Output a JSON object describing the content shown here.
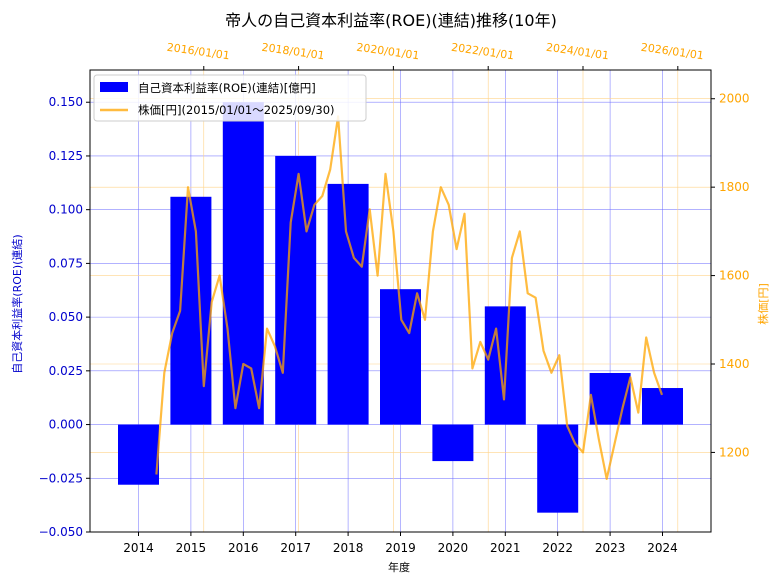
{
  "colors": {
    "bar": "#0000ff",
    "price": "#ffa500",
    "left_axis_text": "#0000cc",
    "right_axis_text": "#ffa500",
    "grid_left": "#6666ff",
    "grid_right": "#ffd38a"
  },
  "chart_data": {
    "type": "bar",
    "title": "帝人の自己資本利益率(ROE)(連結)推移(10年)",
    "xlabel": "年度",
    "ylabel": "自己資本利益率(ROE)(連結)",
    "y2label": "株価[円]",
    "legend_position": "top-left",
    "grid": true,
    "categories": [
      "2014",
      "2015",
      "2016",
      "2017",
      "2018",
      "2019",
      "2020",
      "2021",
      "2022",
      "2023",
      "2024"
    ],
    "ylim": [
      -0.05,
      0.165
    ],
    "yticks": [
      "−0.050",
      "−0.025",
      "0.000",
      "0.025",
      "0.050",
      "0.075",
      "0.100",
      "0.125",
      "0.150"
    ],
    "y2lim": [
      1020,
      2065
    ],
    "y2ticks": [
      "1200",
      "1400",
      "1600",
      "1800",
      "2000"
    ],
    "top_axis_ticks": [
      "2016/01/01",
      "2018/01/01",
      "2020/01/01",
      "2022/01/01",
      "2024/01/01",
      "2026/01/01"
    ],
    "series": [
      {
        "name": "自己資本利益率(ROE)(連結)[億円]",
        "kind": "bar",
        "values": [
          -0.028,
          0.106,
          0.15,
          0.125,
          0.112,
          0.063,
          -0.017,
          0.055,
          -0.041,
          0.024,
          0.017
        ]
      },
      {
        "name": "株価[円](2015/01/01～2025/09/30)",
        "kind": "line",
        "axis": "right",
        "x": [
          "2015/01",
          "2015/03",
          "2015/05",
          "2015/07",
          "2015/09",
          "2015/11",
          "2016/01",
          "2016/03",
          "2016/05",
          "2016/07",
          "2016/09",
          "2016/11",
          "2017/01",
          "2017/03",
          "2017/05",
          "2017/07",
          "2017/09",
          "2017/11",
          "2018/01",
          "2018/03",
          "2018/05",
          "2018/07",
          "2018/09",
          "2018/11",
          "2019/01",
          "2019/03",
          "2019/05",
          "2019/07",
          "2019/09",
          "2019/11",
          "2020/01",
          "2020/03",
          "2020/05",
          "2020/07",
          "2020/09",
          "2020/11",
          "2021/01",
          "2021/03",
          "2021/05",
          "2021/07",
          "2021/09",
          "2021/11",
          "2022/01",
          "2022/03",
          "2022/05",
          "2022/07",
          "2022/09",
          "2022/11",
          "2023/01",
          "2023/03",
          "2023/05",
          "2023/07",
          "2023/09",
          "2023/11",
          "2024/01",
          "2024/03",
          "2024/05",
          "2024/07",
          "2024/09",
          "2024/11",
          "2025/01",
          "2025/03",
          "2025/05",
          "2025/07",
          "2025/09"
        ],
        "values": [
          1150,
          1380,
          1470,
          1520,
          1800,
          1700,
          1350,
          1540,
          1600,
          1480,
          1300,
          1400,
          1390,
          1300,
          1480,
          1440,
          1380,
          1720,
          1830,
          1700,
          1760,
          1780,
          1840,
          1960,
          1700,
          1640,
          1620,
          1750,
          1600,
          1830,
          1700,
          1500,
          1470,
          1560,
          1500,
          1700,
          1800,
          1760,
          1660,
          1740,
          1390,
          1450,
          1410,
          1480,
          1320,
          1640,
          1700,
          1560,
          1550,
          1430,
          1380,
          1420,
          1260,
          1220,
          1200,
          1330,
          1230,
          1140,
          1220,
          1300,
          1370,
          1290,
          1460,
          1380,
          1330
        ]
      }
    ]
  }
}
